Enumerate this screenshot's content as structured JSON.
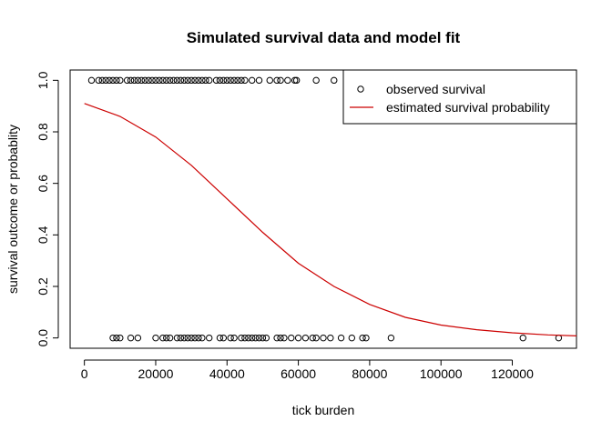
{
  "chart_data": {
    "type": "scatter",
    "title": "Simulated survival data and model fit",
    "xlabel": "tick burden",
    "ylabel": "survival outcome or probablity",
    "xlim": [
      -4000,
      138000
    ],
    "ylim": [
      -0.04,
      1.04
    ],
    "x_ticks": [
      0,
      20000,
      40000,
      60000,
      80000,
      100000,
      120000
    ],
    "x_tick_labels": [
      "0",
      "20000",
      "40000",
      "60000",
      "80000",
      "100000",
      "120000"
    ],
    "y_ticks": [
      0.0,
      0.2,
      0.4,
      0.6,
      0.8,
      1.0
    ],
    "y_tick_labels": [
      "0.0",
      "0.2",
      "0.4",
      "0.6",
      "0.8",
      "1.0"
    ],
    "grid": false,
    "legend_position": "top-right",
    "series": [
      {
        "name": "observed survival",
        "kind": "points",
        "marker": "open-circle",
        "color": "#000000",
        "x_survived": [
          2000,
          4000,
          5000,
          6000,
          7000,
          8000,
          9000,
          10000,
          12000,
          13000,
          14000,
          15000,
          16000,
          17000,
          18000,
          19000,
          20000,
          21000,
          22000,
          23000,
          24000,
          25000,
          26000,
          27000,
          28000,
          29000,
          30000,
          31000,
          32000,
          33000,
          34000,
          35000,
          37000,
          38000,
          39000,
          40000,
          41000,
          42000,
          43000,
          44000,
          45000,
          47000,
          49000,
          52000,
          54000,
          55000,
          57000,
          59000,
          59500,
          65000,
          70000
        ],
        "x_died": [
          8000,
          9000,
          10000,
          13000,
          15000,
          20000,
          22000,
          23000,
          24000,
          26000,
          27000,
          28000,
          29000,
          30000,
          31000,
          32000,
          33000,
          35000,
          38000,
          39000,
          41000,
          42000,
          44000,
          45000,
          46000,
          47000,
          48000,
          49000,
          50000,
          51000,
          54000,
          55000,
          56000,
          58000,
          60000,
          62000,
          64000,
          65000,
          67000,
          69000,
          72000,
          75000,
          78000,
          79000,
          86000,
          123000,
          133000
        ]
      },
      {
        "name": "estimated survival probability",
        "kind": "line",
        "color": "#cc0000",
        "x": [
          0,
          10000,
          20000,
          30000,
          40000,
          50000,
          60000,
          70000,
          80000,
          90000,
          100000,
          110000,
          120000,
          130000,
          138000
        ],
        "y": [
          0.91,
          0.86,
          0.78,
          0.67,
          0.54,
          0.41,
          0.29,
          0.2,
          0.13,
          0.08,
          0.05,
          0.032,
          0.02,
          0.012,
          0.008
        ]
      }
    ]
  }
}
